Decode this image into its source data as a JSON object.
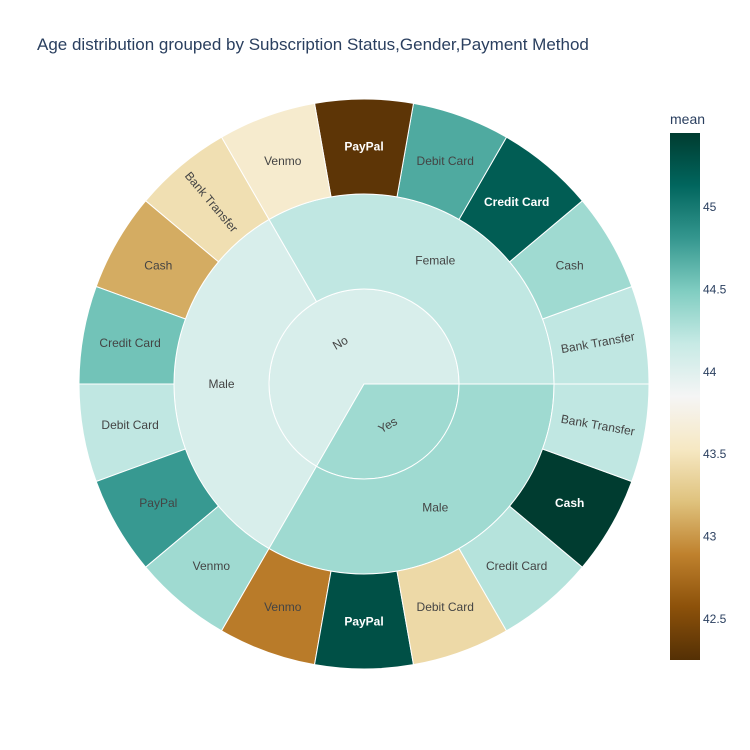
{
  "chart_data": {
    "type": "sunburst",
    "title": "Age distribution grouped by Subscription Status,Gender,Payment Method",
    "color_metric": "mean",
    "colorbar": {
      "title": "mean",
      "min": 42.25,
      "max": 45.45,
      "ticks": [
        "42.5",
        "43",
        "43.5",
        "44",
        "44.5",
        "45"
      ],
      "tick_values": [
        42.5,
        43,
        43.5,
        44,
        44.5,
        45
      ]
    },
    "colorscale": [
      [
        0.0,
        "#543005"
      ],
      [
        0.1,
        "#8c510a"
      ],
      [
        0.2,
        "#bf812d"
      ],
      [
        0.3,
        "#dfc27d"
      ],
      [
        0.4,
        "#f6e8c3"
      ],
      [
        0.5,
        "#f5f5f5"
      ],
      [
        0.6,
        "#c7eae5"
      ],
      [
        0.7,
        "#80cdc1"
      ],
      [
        0.8,
        "#35978f"
      ],
      [
        0.9,
        "#01665e"
      ],
      [
        1.0,
        "#003c30"
      ]
    ],
    "hierarchy": [
      {
        "label": "No",
        "mean": 44.05,
        "children": [
          {
            "label": "Female",
            "mean": 44.2,
            "children": [
              {
                "label": "Bank Transfer",
                "mean": 44.2
              },
              {
                "label": "Cash",
                "mean": 44.35
              },
              {
                "label": "Credit Card",
                "mean": 45.2
              },
              {
                "label": "Debit Card",
                "mean": 44.7
              },
              {
                "label": "PayPal",
                "mean": 42.3
              },
              {
                "label": "Venmo",
                "mean": 43.6
              }
            ]
          },
          {
            "label": "Male",
            "mean": 44.05,
            "children": [
              {
                "label": "Bank Transfer",
                "mean": 43.45
              },
              {
                "label": "Cash",
                "mean": 43.1
              },
              {
                "label": "Credit Card",
                "mean": 44.55
              },
              {
                "label": "Debit Card",
                "mean": 44.2
              },
              {
                "label": "PayPal",
                "mean": 44.8
              },
              {
                "label": "Venmo",
                "mean": 44.35
              }
            ]
          }
        ]
      },
      {
        "label": "Yes",
        "mean": 44.35,
        "children": [
          {
            "label": "Male",
            "mean": 44.35,
            "children": [
              {
                "label": "Venmo",
                "mean": 42.85
              },
              {
                "label": "PayPal",
                "mean": 45.3
              },
              {
                "label": "Debit Card",
                "mean": 43.4
              },
              {
                "label": "Credit Card",
                "mean": 44.25
              },
              {
                "label": "Cash",
                "mean": 45.45
              },
              {
                "label": "Bank Transfer",
                "mean": 44.2
              }
            ]
          }
        ]
      }
    ]
  }
}
